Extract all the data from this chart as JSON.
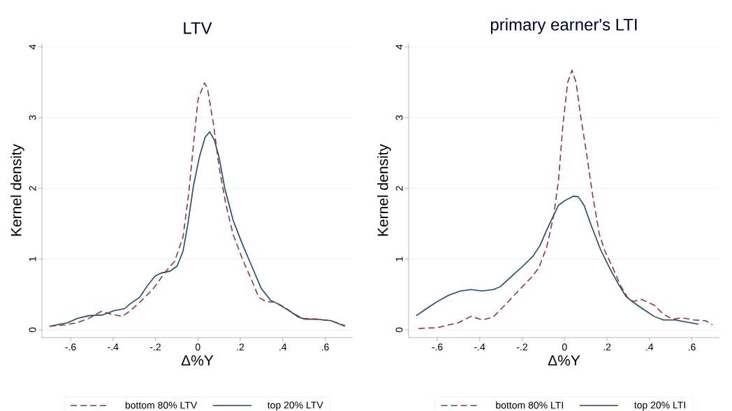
{
  "chart_data": [
    {
      "type": "line",
      "title": "LTV",
      "xlabel": "Δ%Y",
      "ylabel": "Kernel density",
      "xlim": [
        -0.735,
        0.73
      ],
      "ylim": [
        -0.11,
        4.05
      ],
      "xticks": [
        {
          "value": -0.6,
          "label": "-.6"
        },
        {
          "value": -0.4,
          "label": "-.4"
        },
        {
          "value": -0.2,
          "label": "-.2"
        },
        0,
        {
          "value": 0.2,
          "label": ".2"
        },
        {
          "value": 0.4,
          "label": ".4"
        },
        {
          "value": 0.6,
          "label": ".6"
        }
      ],
      "yticks": [
        0,
        1,
        2,
        3,
        4
      ],
      "grid": "y",
      "legend": "bottom",
      "series": [
        {
          "name": "bottom 80% LTV",
          "color": "#90353b",
          "line_style": "dashed",
          "x": [
            -0.699,
            -0.625,
            -0.57,
            -0.515,
            -0.455,
            -0.405,
            -0.356,
            -0.318,
            -0.263,
            -0.208,
            -0.153,
            -0.109,
            -0.07,
            -0.043,
            -0.021,
            0.001,
            0.031,
            0.045,
            0.073,
            0.1,
            0.133,
            0.166,
            0.21,
            0.254,
            0.287,
            0.32,
            0.364,
            0.408,
            0.452,
            0.496,
            0.562,
            0.627,
            0.693
          ],
          "values": [
            0.05,
            0.07,
            0.1,
            0.16,
            0.26,
            0.22,
            0.19,
            0.27,
            0.42,
            0.59,
            0.82,
            0.97,
            1.31,
            1.93,
            2.61,
            3.26,
            3.49,
            3.42,
            2.92,
            2.3,
            1.76,
            1.35,
            1.0,
            0.7,
            0.46,
            0.4,
            0.39,
            0.32,
            0.23,
            0.16,
            0.15,
            0.13,
            0.06
          ]
        },
        {
          "name": "top 20% LTV",
          "color": "#1a476f",
          "line_style": "solid",
          "x": [
            -0.699,
            -0.614,
            -0.57,
            -0.515,
            -0.449,
            -0.395,
            -0.345,
            -0.318,
            -0.274,
            -0.241,
            -0.202,
            -0.175,
            -0.131,
            -0.098,
            -0.07,
            -0.048,
            -0.021,
            0.007,
            0.034,
            0.056,
            0.078,
            0.1,
            0.127,
            0.166,
            0.21,
            0.254,
            0.298,
            0.342,
            0.375,
            0.43,
            0.474,
            0.507,
            0.562,
            0.627,
            0.693
          ],
          "values": [
            0.05,
            0.1,
            0.16,
            0.2,
            0.21,
            0.27,
            0.3,
            0.37,
            0.46,
            0.61,
            0.76,
            0.8,
            0.83,
            0.9,
            1.11,
            1.48,
            2.03,
            2.44,
            2.72,
            2.8,
            2.68,
            2.44,
            2.0,
            1.55,
            1.21,
            0.9,
            0.59,
            0.42,
            0.37,
            0.27,
            0.18,
            0.15,
            0.15,
            0.13,
            0.05
          ]
        }
      ]
    },
    {
      "type": "line",
      "title": "primary earner's LTI",
      "xlabel": "Δ%Y",
      "ylabel": "Kernel density",
      "xlim": [
        -0.735,
        0.73
      ],
      "ylim": [
        -0.11,
        4.05
      ],
      "xticks": [
        {
          "value": -0.6,
          "label": "-.6"
        },
        {
          "value": -0.4,
          "label": "-.4"
        },
        {
          "value": -0.2,
          "label": "-.2"
        },
        0,
        {
          "value": 0.2,
          "label": ".2"
        },
        {
          "value": 0.4,
          "label": ".4"
        },
        {
          "value": 0.6,
          "label": ".6"
        }
      ],
      "yticks": [
        0,
        1,
        2,
        3,
        4
      ],
      "grid": "y",
      "legend": "bottom",
      "series": [
        {
          "name": "bottom 80% LTI",
          "color": "#90353b",
          "line_style": "dashed",
          "x": [
            -0.688,
            -0.6,
            -0.545,
            -0.501,
            -0.441,
            -0.386,
            -0.336,
            -0.281,
            -0.215,
            -0.16,
            -0.122,
            -0.084,
            -0.051,
            -0.029,
            -0.007,
            0.015,
            0.035,
            0.054,
            0.076,
            0.103,
            0.131,
            0.164,
            0.191,
            0.224,
            0.263,
            0.296,
            0.323,
            0.362,
            0.422,
            0.466,
            0.51,
            0.554,
            0.609,
            0.664,
            0.697
          ],
          "values": [
            0.02,
            0.03,
            0.07,
            0.1,
            0.19,
            0.14,
            0.18,
            0.35,
            0.56,
            0.73,
            0.87,
            1.17,
            1.62,
            2.1,
            2.92,
            3.5,
            3.67,
            3.5,
            3.02,
            2.51,
            1.93,
            1.35,
            1.11,
            0.9,
            0.63,
            0.46,
            0.4,
            0.43,
            0.35,
            0.22,
            0.15,
            0.17,
            0.14,
            0.13,
            0.07
          ]
        },
        {
          "name": "top 20% LTI",
          "color": "#1a476f",
          "line_style": "solid",
          "x": [
            -0.699,
            -0.655,
            -0.6,
            -0.545,
            -0.49,
            -0.441,
            -0.391,
            -0.336,
            -0.303,
            -0.248,
            -0.193,
            -0.149,
            -0.116,
            -0.084,
            -0.051,
            -0.029,
            0.004,
            0.043,
            0.065,
            0.092,
            0.125,
            0.169,
            0.213,
            0.257,
            0.29,
            0.323,
            0.367,
            0.422,
            0.466,
            0.521,
            0.576,
            0.631
          ],
          "values": [
            0.2,
            0.29,
            0.4,
            0.49,
            0.55,
            0.57,
            0.55,
            0.57,
            0.61,
            0.76,
            0.91,
            1.04,
            1.19,
            1.41,
            1.62,
            1.76,
            1.83,
            1.89,
            1.88,
            1.76,
            1.48,
            1.14,
            0.87,
            0.63,
            0.47,
            0.39,
            0.3,
            0.19,
            0.14,
            0.14,
            0.11,
            0.08
          ]
        }
      ]
    }
  ]
}
